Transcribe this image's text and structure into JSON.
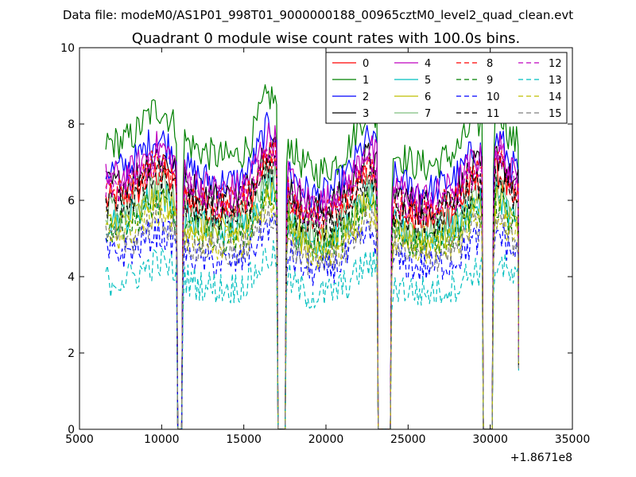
{
  "figure": {
    "suptitle": "Data file: modeM0/AS1P01_998T01_9000000188_00965cztM0_level2_quad_clean.evt"
  },
  "chart_data": {
    "type": "line",
    "title": "Quadrant 0 module wise count rates with 100.0s bins.",
    "xlabel": "",
    "ylabel": "",
    "xlim": [
      5000,
      35000
    ],
    "ylim": [
      0,
      10
    ],
    "x_offset_label": "+1.8671e8",
    "x_ticks": [
      5000,
      10000,
      15000,
      20000,
      25000,
      30000,
      35000
    ],
    "x_tick_labels": [
      "5000",
      "10000",
      "15000",
      "20000",
      "25000",
      "30000",
      "35000"
    ],
    "y_ticks": [
      0,
      2,
      4,
      6,
      8,
      10
    ],
    "y_tick_labels": [
      "0",
      "2",
      "4",
      "6",
      "8",
      "10"
    ],
    "legend_position": "top-right",
    "legend_columns": 4,
    "segments": [
      [
        6600,
        10900
      ],
      [
        11300,
        17000
      ],
      [
        17600,
        23100
      ],
      [
        24000,
        29500
      ],
      [
        30200,
        31700
      ]
    ],
    "bin_width": 100,
    "series": [
      {
        "name": "0",
        "color": "#ff0000",
        "dash": "solid",
        "level": 6.0
      },
      {
        "name": "1",
        "color": "#008000",
        "dash": "solid",
        "level": 7.5
      },
      {
        "name": "2",
        "color": "#0000ff",
        "dash": "solid",
        "level": 6.8
      },
      {
        "name": "3",
        "color": "#000000",
        "dash": "solid",
        "level": 6.4
      },
      {
        "name": "4",
        "color": "#bf00bf",
        "dash": "solid",
        "level": 6.6
      },
      {
        "name": "5",
        "color": "#00bfbf",
        "dash": "solid",
        "level": 5.5
      },
      {
        "name": "6",
        "color": "#bfbf00",
        "dash": "solid",
        "level": 5.4
      },
      {
        "name": "7",
        "color": "#7fbf7f",
        "dash": "solid",
        "level": 5.7
      },
      {
        "name": "8",
        "color": "#ff0000",
        "dash": "dashed",
        "level": 6.2
      },
      {
        "name": "9",
        "color": "#008000",
        "dash": "dashed",
        "level": 5.3
      },
      {
        "name": "10",
        "color": "#0000ff",
        "dash": "dashed",
        "level": 4.6
      },
      {
        "name": "11",
        "color": "#000000",
        "dash": "dashed",
        "level": 5.9
      },
      {
        "name": "12",
        "color": "#bf00bf",
        "dash": "dashed",
        "level": 6.3
      },
      {
        "name": "13",
        "color": "#00bfbf",
        "dash": "dashed",
        "level": 3.9
      },
      {
        "name": "14",
        "color": "#bfbf00",
        "dash": "dashed",
        "level": 5.1
      },
      {
        "name": "15",
        "color": "#7f7f7f",
        "dash": "dashed",
        "level": 4.9
      }
    ]
  }
}
